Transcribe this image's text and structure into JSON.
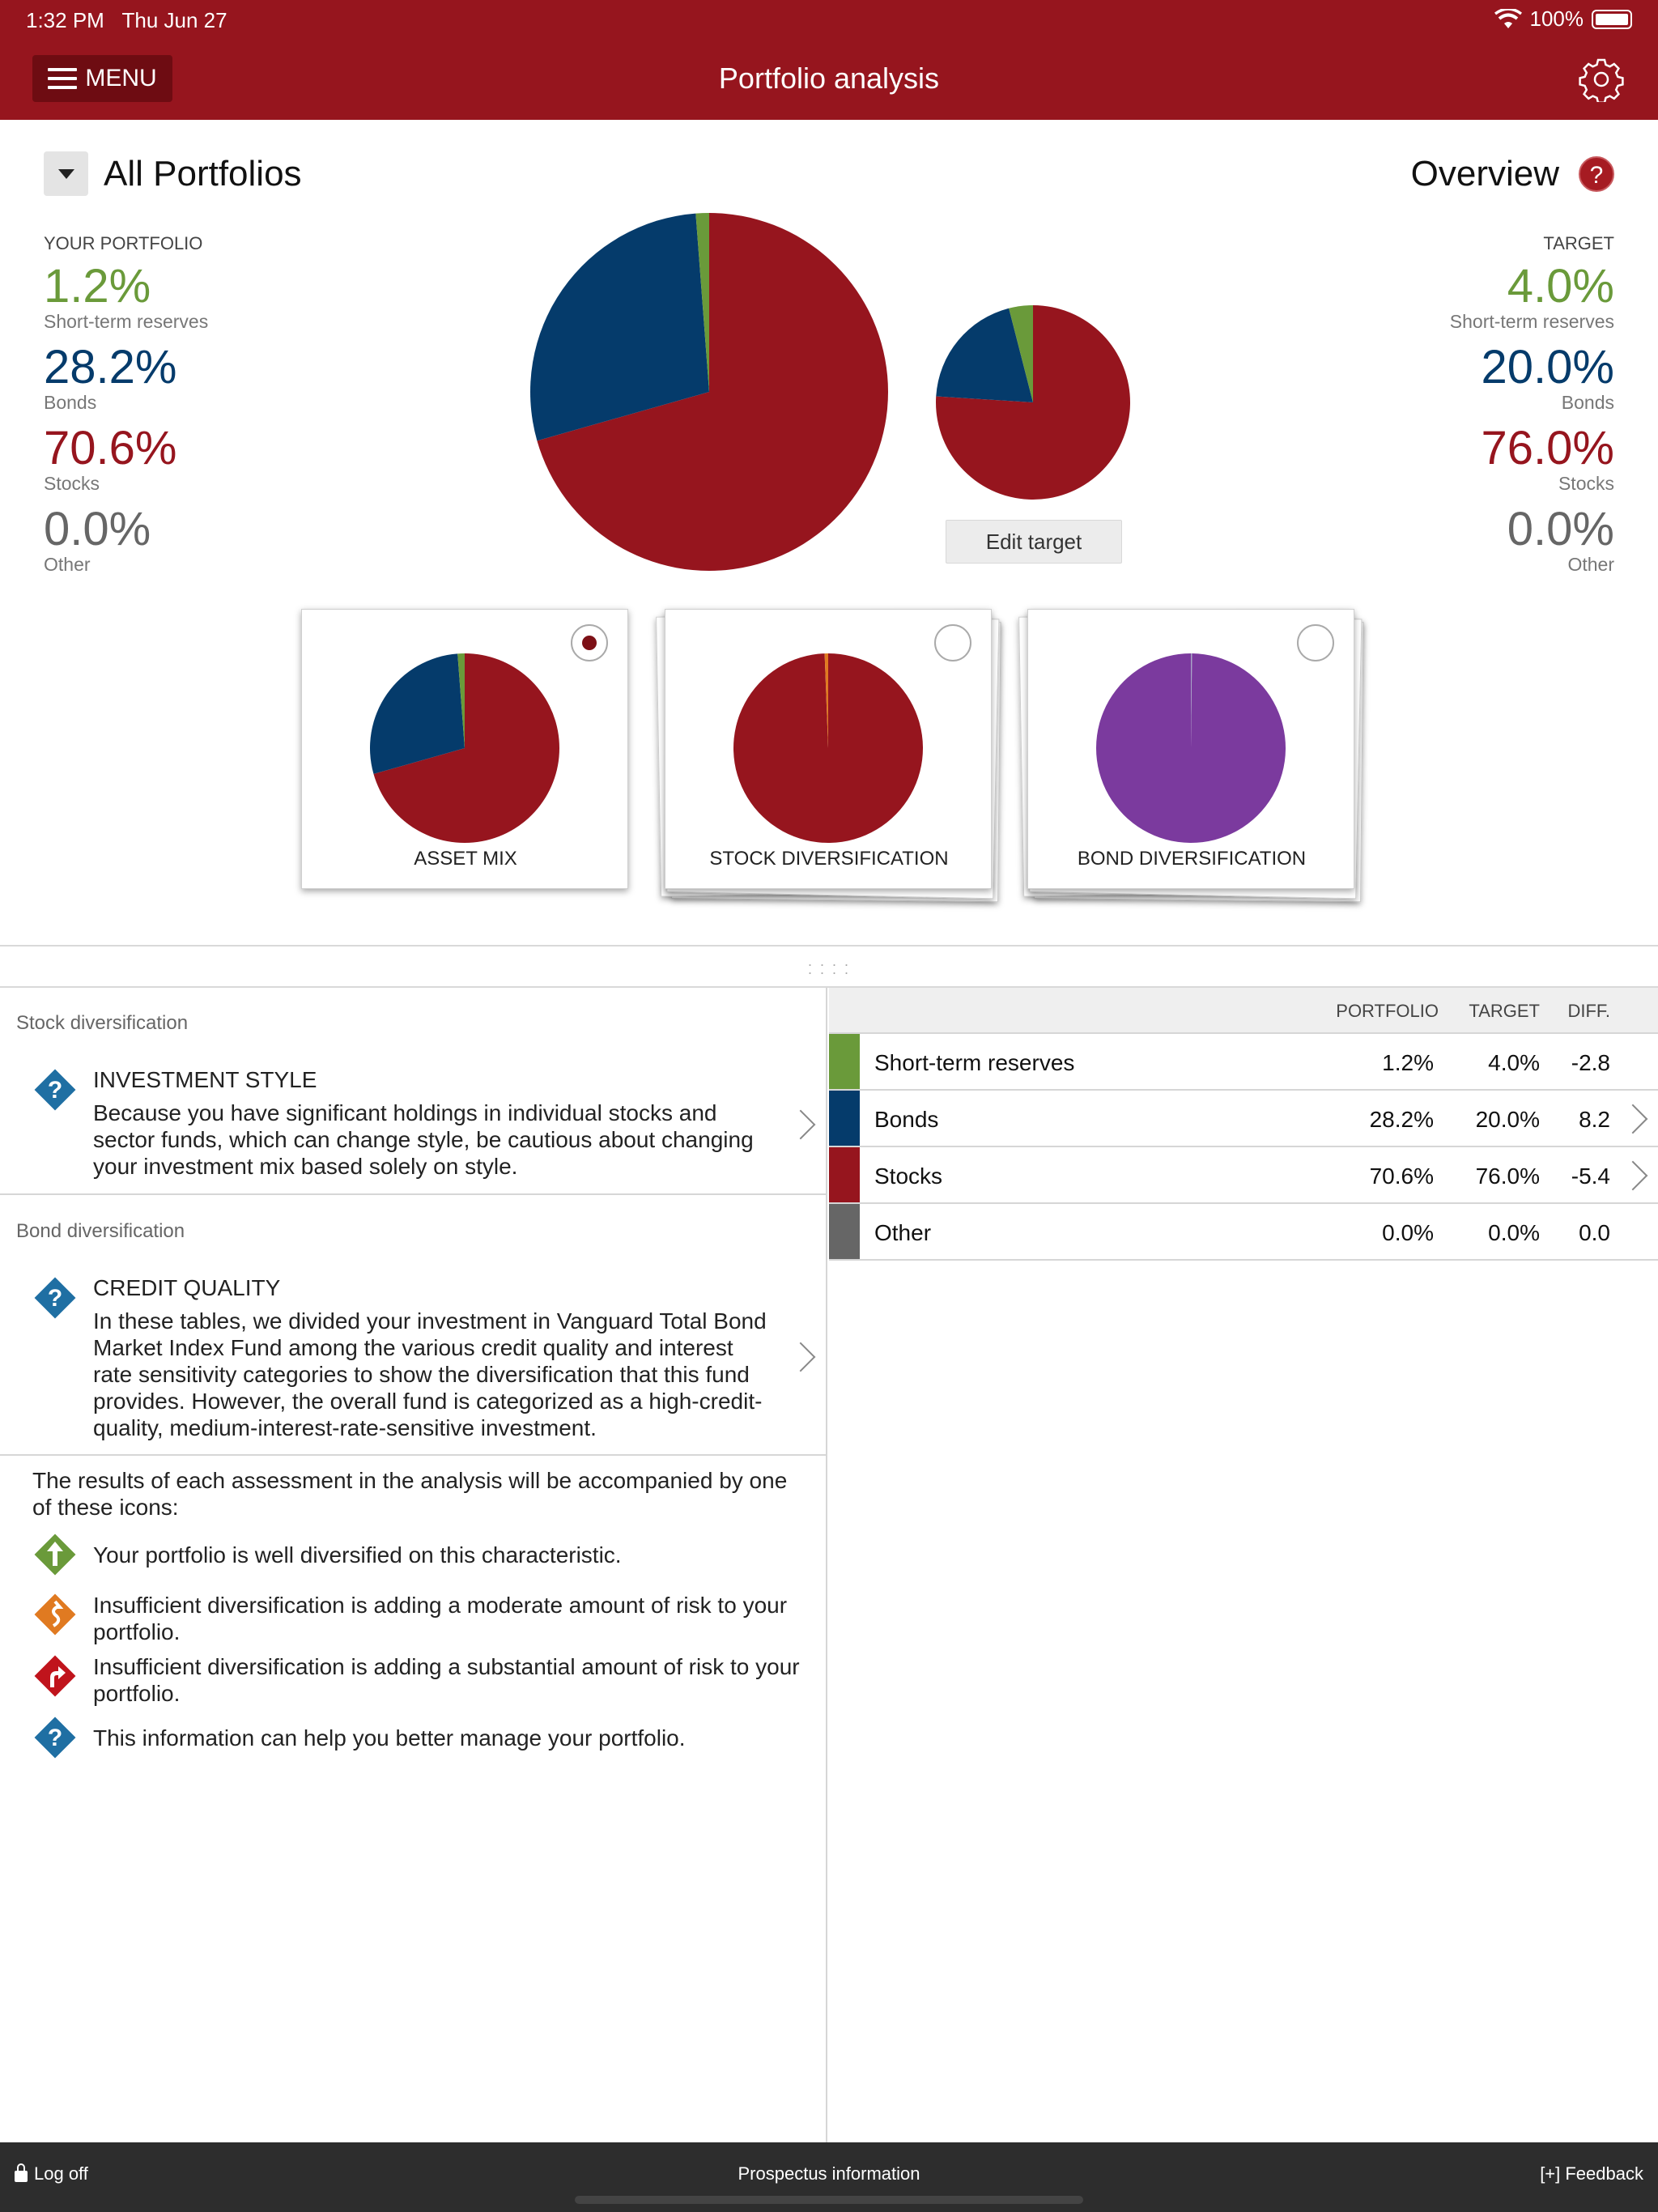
{
  "status_bar": {
    "time": "1:32 PM",
    "date": "Thu Jun 27",
    "battery": "100%"
  },
  "header": {
    "menu_label": "MENU",
    "title": "Portfolio analysis",
    "settings_icon": "gear-icon"
  },
  "summary": {
    "selector_title": "All Portfolios",
    "view_title": "Overview",
    "help_glyph": "?",
    "your_portfolio": {
      "heading": "YOUR PORTFOLIO",
      "items": [
        {
          "pct": "1.2%",
          "label": "Short-term reserves"
        },
        {
          "pct": "28.2%",
          "label": "Bonds"
        },
        {
          "pct": "70.6%",
          "label": "Stocks"
        },
        {
          "pct": "0.0%",
          "label": "Other"
        }
      ]
    },
    "target": {
      "heading": "TARGET",
      "items": [
        {
          "pct": "4.0%",
          "label": "Short-term reserves"
        },
        {
          "pct": "20.0%",
          "label": "Bonds"
        },
        {
          "pct": "76.0%",
          "label": "Stocks"
        },
        {
          "pct": "0.0%",
          "label": "Other"
        }
      ]
    },
    "edit_target_label": "Edit target"
  },
  "colors": {
    "short_term": "#6a9a3a",
    "bonds": "#053b6b",
    "stocks": "#96151e",
    "other": "#666666",
    "purple": "#7b3a9e",
    "orange": "#e07a21"
  },
  "chart_data": [
    {
      "type": "pie",
      "title": "Your portfolio",
      "labels": [
        "Short-term reserves",
        "Bonds",
        "Stocks",
        "Other"
      ],
      "values": [
        1.2,
        28.2,
        70.6,
        0.0
      ]
    },
    {
      "type": "pie",
      "title": "Target",
      "labels": [
        "Short-term reserves",
        "Bonds",
        "Stocks",
        "Other"
      ],
      "values": [
        4.0,
        20.0,
        76.0,
        0.0
      ]
    },
    {
      "type": "pie",
      "title": "ASSET MIX",
      "labels": [
        "Short-term reserves",
        "Bonds",
        "Stocks",
        "Other"
      ],
      "values": [
        1.2,
        28.2,
        70.6,
        0.0
      ]
    },
    {
      "type": "pie",
      "title": "STOCK DIVERSIFICATION",
      "labels": [
        "Stocks",
        "Other"
      ],
      "values": [
        99.4,
        0.6
      ]
    },
    {
      "type": "pie",
      "title": "BOND DIVERSIFICATION",
      "labels": [
        "Bonds",
        "Other"
      ],
      "values": [
        99.8,
        0.2
      ]
    }
  ],
  "cards": [
    {
      "label": "ASSET MIX",
      "selected": true
    },
    {
      "label": "STOCK DIVERSIFICATION",
      "selected": false
    },
    {
      "label": "BOND DIVERSIFICATION",
      "selected": false
    }
  ],
  "assessments": [
    {
      "section": "Stock diversification",
      "heading": "INVESTMENT STYLE",
      "body": "Because you have significant holdings in individual stocks and sector funds, which can change style, be cautious about changing your investment mix based solely on style."
    },
    {
      "section": "Bond diversification",
      "heading": "CREDIT QUALITY",
      "body": "In these tables, we divided your investment in Vanguard Total Bond Market Index Fund among the various credit quality and interest rate sensitivity categories to show the diversification that this fund provides. However, the overall fund is categorized as a high-credit-quality, medium-interest-rate-sensitive investment."
    }
  ],
  "legend": {
    "intro": "The results of each assessment in the analysis will be accompanied by one of these icons:",
    "items": [
      {
        "text": "Your portfolio is well diversified on this characteristic."
      },
      {
        "text": "Insufficient diversification is adding a moderate amount of risk to your portfolio."
      },
      {
        "text": "Insufficient diversification is adding a substantial amount of risk to your portfolio."
      },
      {
        "text": "This information can help you better manage your portfolio."
      }
    ]
  },
  "table": {
    "headers": [
      "PORTFOLIO",
      "TARGET",
      "DIFF."
    ],
    "rows": [
      {
        "name": "Short-term reserves",
        "portfolio": "1.2%",
        "target": "4.0%",
        "diff": "-2.8"
      },
      {
        "name": "Bonds",
        "portfolio": "28.2%",
        "target": "20.0%",
        "diff": "8.2"
      },
      {
        "name": "Stocks",
        "portfolio": "70.6%",
        "target": "76.0%",
        "diff": "-5.4"
      },
      {
        "name": "Other",
        "portfolio": "0.0%",
        "target": "0.0%",
        "diff": "0.0"
      }
    ]
  },
  "footer": {
    "logoff": "Log off",
    "prospectus": "Prospectus information",
    "feedback": "[+] Feedback"
  }
}
